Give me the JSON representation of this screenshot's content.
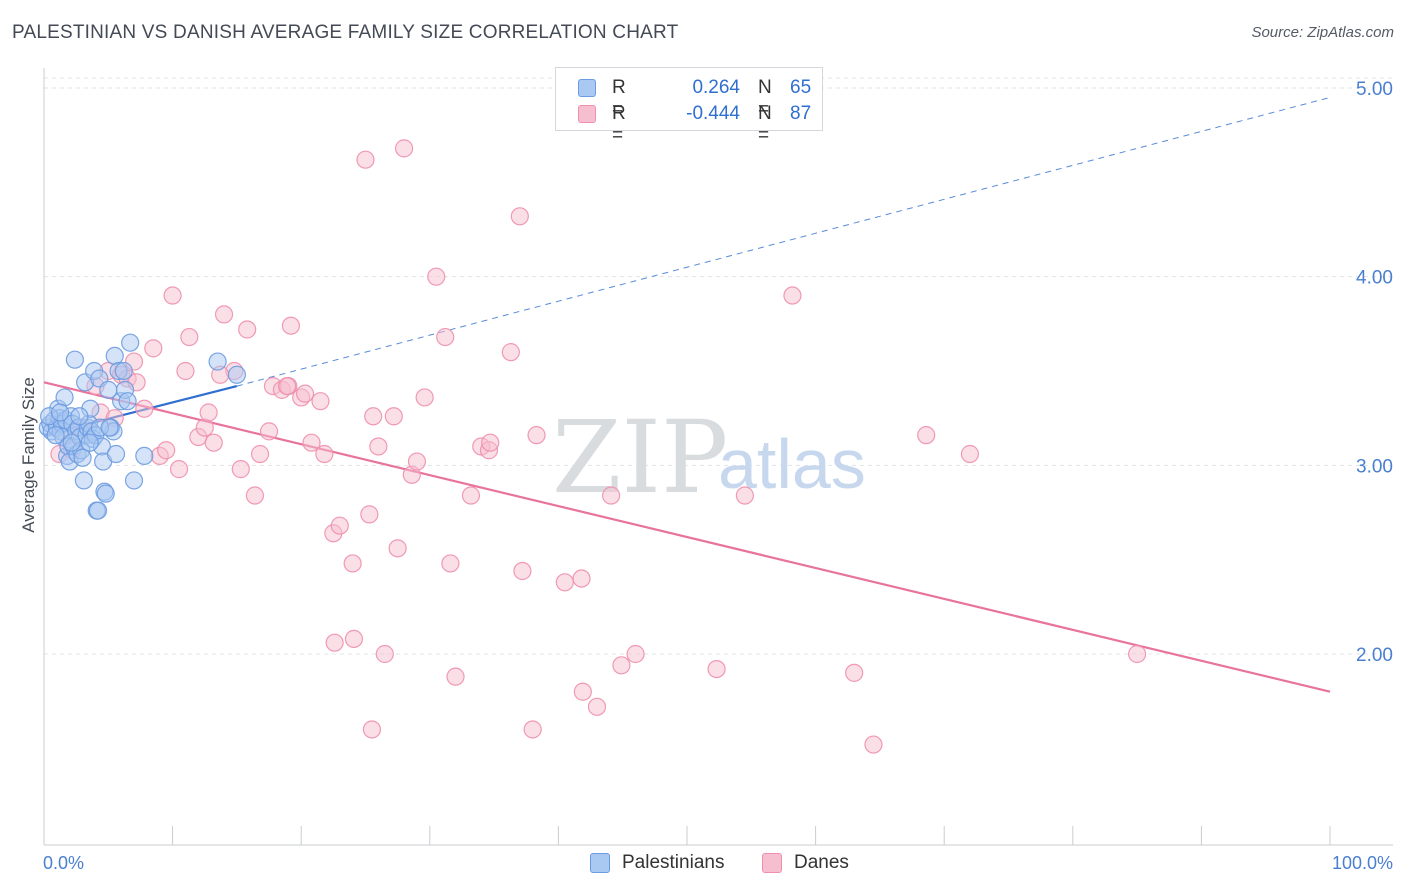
{
  "header": {
    "title": "PALESTINIAN VS DANISH AVERAGE FAMILY SIZE CORRELATION CHART",
    "source": "Source: ZipAtlas.com"
  },
  "watermark": {
    "zip": "ZIP",
    "atlas": "atlas"
  },
  "legend": {
    "rows": [
      {
        "r_label": "R =",
        "r_value": "0.264",
        "n_label": "N =",
        "n_value": "65",
        "color": "#a9c8f2",
        "border": "#6b9be0"
      },
      {
        "r_label": "R =",
        "r_value": "-0.444",
        "n_label": "N =",
        "n_value": "87",
        "color": "#f6bfd0",
        "border": "#ee8fae"
      }
    ]
  },
  "bottom_legend": {
    "palestinians": "Palestinians",
    "danes": "Danes"
  },
  "chart_data": {
    "type": "scatter",
    "title": "PALESTINIAN VS DANISH AVERAGE FAMILY SIZE CORRELATION CHART",
    "xlabel": "",
    "ylabel": "Average Family Size",
    "xlim": [
      0,
      100
    ],
    "ylim": [
      1.0,
      5.2
    ],
    "x_tick_labels": {
      "min": "0.0%",
      "max": "100.0%"
    },
    "y_ticks": [
      2.0,
      3.0,
      4.0,
      5.0
    ],
    "y_tick_labels": [
      "2.00",
      "3.00",
      "4.00",
      "5.00"
    ],
    "grid": true,
    "legend_position": "top-center",
    "series": [
      {
        "name": "Palestinians",
        "color": "#6b9be0",
        "fill": "#a9c8f2",
        "trend": {
          "x0": 0,
          "y0": 3.16,
          "x1": 15,
          "y1": 3.42,
          "dash_to_x": 100,
          "dash_to_y": 4.95,
          "color": "#2f6fd0"
        },
        "points": [
          [
            0.3,
            3.2
          ],
          [
            0.5,
            3.22
          ],
          [
            0.6,
            3.18
          ],
          [
            0.8,
            3.24
          ],
          [
            1.0,
            3.2
          ],
          [
            1.1,
            3.3
          ],
          [
            1.2,
            3.25
          ],
          [
            1.3,
            3.18
          ],
          [
            1.4,
            3.22
          ],
          [
            1.5,
            3.15
          ],
          [
            1.6,
            3.36
          ],
          [
            1.7,
            3.24
          ],
          [
            1.8,
            3.05
          ],
          [
            1.9,
            3.1
          ],
          [
            2.0,
            3.02
          ],
          [
            2.1,
            3.26
          ],
          [
            2.2,
            3.22
          ],
          [
            2.3,
            3.1
          ],
          [
            2.4,
            3.56
          ],
          [
            2.5,
            3.18
          ],
          [
            2.6,
            3.06
          ],
          [
            2.7,
            3.2
          ],
          [
            2.8,
            3.15
          ],
          [
            2.9,
            3.08
          ],
          [
            3.0,
            3.04
          ],
          [
            3.1,
            2.92
          ],
          [
            3.2,
            3.44
          ],
          [
            3.3,
            3.16
          ],
          [
            3.4,
            3.2
          ],
          [
            3.5,
            3.22
          ],
          [
            3.6,
            3.3
          ],
          [
            3.7,
            3.18
          ],
          [
            3.8,
            3.14
          ],
          [
            3.9,
            3.5
          ],
          [
            4.0,
            3.16
          ],
          [
            4.1,
            2.76
          ],
          [
            4.2,
            2.76
          ],
          [
            4.3,
            3.46
          ],
          [
            4.5,
            3.1
          ],
          [
            4.6,
            3.02
          ],
          [
            4.7,
            2.86
          ],
          [
            4.8,
            2.85
          ],
          [
            5.0,
            3.4
          ],
          [
            5.2,
            3.2
          ],
          [
            5.4,
            3.18
          ],
          [
            5.5,
            3.58
          ],
          [
            5.6,
            3.06
          ],
          [
            5.8,
            3.5
          ],
          [
            6.0,
            3.34
          ],
          [
            6.2,
            3.5
          ],
          [
            6.3,
            3.4
          ],
          [
            6.5,
            3.34
          ],
          [
            6.7,
            3.65
          ],
          [
            7.0,
            2.92
          ],
          [
            7.8,
            3.05
          ],
          [
            13.5,
            3.55
          ],
          [
            15.0,
            3.48
          ],
          [
            0.4,
            3.26
          ],
          [
            0.9,
            3.16
          ],
          [
            1.25,
            3.28
          ],
          [
            2.15,
            3.12
          ],
          [
            2.75,
            3.26
          ],
          [
            3.55,
            3.12
          ],
          [
            4.35,
            3.2
          ],
          [
            5.1,
            3.2
          ]
        ]
      },
      {
        "name": "Danes",
        "color": "#ee8fae",
        "fill": "#f6bfd0",
        "trend": {
          "x0": 0,
          "y0": 3.44,
          "x1": 100,
          "y1": 1.8,
          "color": "#e8739c"
        },
        "points": [
          [
            1.2,
            3.06
          ],
          [
            1.8,
            3.16
          ],
          [
            2.2,
            3.08
          ],
          [
            3.0,
            3.2
          ],
          [
            4.0,
            3.42
          ],
          [
            4.4,
            3.28
          ],
          [
            5.0,
            3.5
          ],
          [
            5.5,
            3.25
          ],
          [
            6.0,
            3.48
          ],
          [
            6.5,
            3.46
          ],
          [
            7.0,
            3.55
          ],
          [
            7.2,
            3.44
          ],
          [
            7.8,
            3.3
          ],
          [
            8.5,
            3.62
          ],
          [
            9.0,
            3.05
          ],
          [
            9.5,
            3.08
          ],
          [
            10.0,
            3.9
          ],
          [
            10.5,
            2.98
          ],
          [
            11.0,
            3.5
          ],
          [
            11.3,
            3.68
          ],
          [
            12.0,
            3.15
          ],
          [
            12.5,
            3.2
          ],
          [
            12.8,
            3.28
          ],
          [
            13.2,
            3.12
          ],
          [
            14.0,
            3.8
          ],
          [
            14.8,
            3.5
          ],
          [
            15.3,
            2.98
          ],
          [
            15.8,
            3.72
          ],
          [
            16.4,
            2.84
          ],
          [
            16.8,
            3.06
          ],
          [
            17.5,
            3.18
          ],
          [
            17.8,
            3.42
          ],
          [
            18.5,
            3.4
          ],
          [
            19.0,
            3.42
          ],
          [
            19.2,
            3.74
          ],
          [
            20.0,
            3.36
          ],
          [
            20.3,
            3.38
          ],
          [
            20.8,
            3.12
          ],
          [
            21.5,
            3.34
          ],
          [
            21.8,
            3.06
          ],
          [
            22.5,
            2.64
          ],
          [
            23.0,
            2.68
          ],
          [
            22.6,
            2.06
          ],
          [
            24.0,
            2.48
          ],
          [
            24.1,
            2.08
          ],
          [
            25.0,
            4.62
          ],
          [
            25.3,
            2.74
          ],
          [
            25.5,
            1.6
          ],
          [
            26.0,
            3.1
          ],
          [
            26.5,
            2.0
          ],
          [
            27.2,
            3.26
          ],
          [
            27.5,
            2.56
          ],
          [
            28.0,
            4.68
          ],
          [
            28.6,
            2.95
          ],
          [
            29.0,
            3.02
          ],
          [
            29.6,
            3.36
          ],
          [
            30.5,
            4.0
          ],
          [
            31.2,
            3.68
          ],
          [
            31.6,
            2.48
          ],
          [
            32.0,
            1.88
          ],
          [
            33.2,
            2.84
          ],
          [
            34.0,
            3.1
          ],
          [
            34.6,
            3.08
          ],
          [
            36.3,
            3.6
          ],
          [
            37.0,
            4.32
          ],
          [
            37.2,
            2.44
          ],
          [
            38.0,
            1.6
          ],
          [
            38.3,
            3.16
          ],
          [
            40.5,
            2.38
          ],
          [
            41.8,
            2.4
          ],
          [
            41.9,
            1.8
          ],
          [
            43.0,
            1.72
          ],
          [
            44.1,
            2.84
          ],
          [
            44.9,
            1.94
          ],
          [
            46.0,
            2.0
          ],
          [
            52.3,
            1.92
          ],
          [
            54.5,
            2.84
          ],
          [
            58.2,
            3.9
          ],
          [
            63.0,
            1.9
          ],
          [
            64.5,
            1.52
          ],
          [
            68.6,
            3.16
          ],
          [
            72.0,
            3.06
          ],
          [
            85.0,
            2.0
          ],
          [
            18.9,
            3.42
          ],
          [
            13.7,
            3.48
          ],
          [
            25.6,
            3.26
          ],
          [
            34.7,
            3.12
          ]
        ]
      }
    ]
  }
}
